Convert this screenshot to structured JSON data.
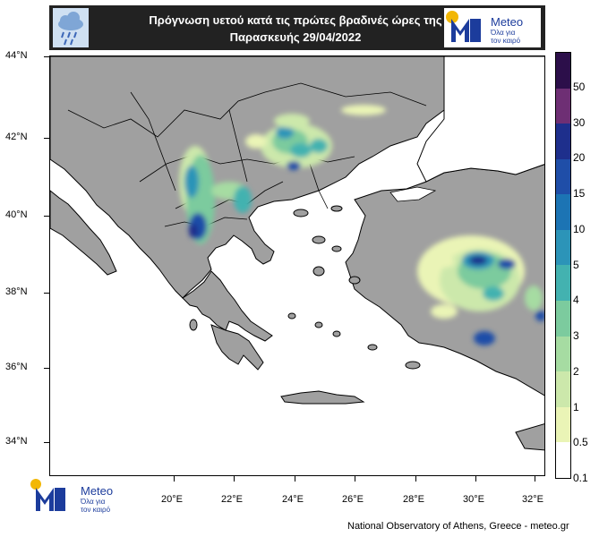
{
  "header": {
    "title_line1": "Πρόγνωση υετού κατά τις πρώτες βραδινές ώρες της",
    "title_line2": "Παρασκευής 29/04/2022",
    "icon": "rain-cloud-icon"
  },
  "logo": {
    "name": "Meteo",
    "tagline_line1": "Όλα για",
    "tagline_line2": "τον καιρό"
  },
  "map": {
    "lat_labels": [
      "44°N",
      "42°N",
      "40°N",
      "38°N",
      "36°N",
      "34°N"
    ],
    "lon_labels": [
      "20°E",
      "22°E",
      "24°E",
      "26°E",
      "28°E",
      "30°E",
      "32°E"
    ],
    "land_color": "#a0a0a0",
    "sea_color": "#ffffff"
  },
  "colorbar": {
    "labels": [
      "50",
      "30",
      "20",
      "15",
      "10",
      "5",
      "4",
      "3",
      "2",
      "1",
      "0.5",
      "0.1"
    ],
    "colors": [
      "#2c0f4a",
      "#6e2f74",
      "#1e2f8c",
      "#1f4ea8",
      "#1c74b4",
      "#2c94b8",
      "#43b2b0",
      "#7ccb9e",
      "#a6dca2",
      "#cce8ab",
      "#eaf4b6",
      "#ffffff"
    ]
  },
  "footer": "National Observatory of Athens, Greece - meteo.gr"
}
